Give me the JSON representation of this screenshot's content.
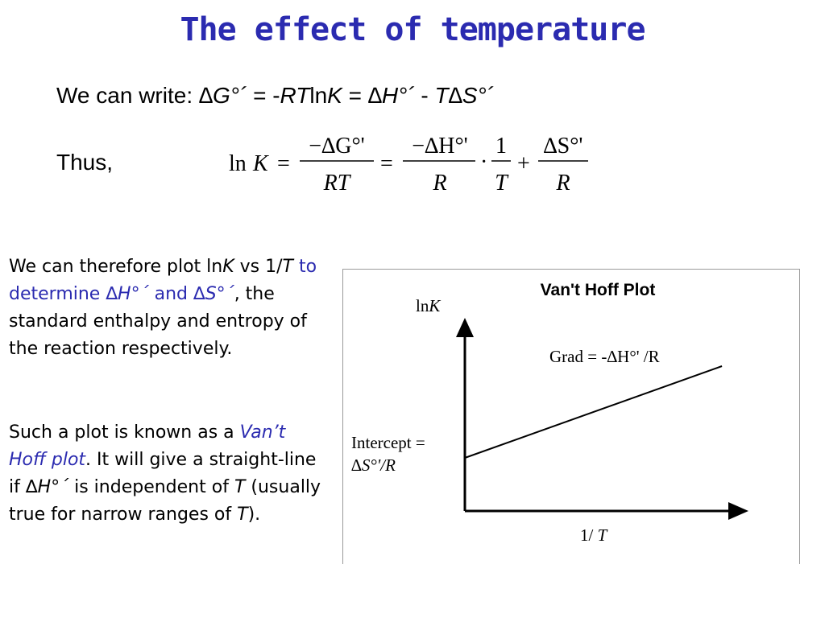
{
  "title": "The effect of temperature",
  "equation_line": {
    "prefix": "We can write:  ",
    "delta_g": "∆G°´",
    "equals": "  =  -",
    "rt": "RT",
    "ln": "ln",
    "k": "K",
    "eq2": " = ",
    "delta_h": "∆H°´",
    "minus": " - ",
    "t_delta_s": "T∆S°´"
  },
  "thus_label": "Thus,",
  "formula": {
    "ln": "ln",
    "k": "K",
    "eq": "=",
    "num1": "−∆G°'",
    "den1": "RT",
    "num2": "−∆H°'",
    "den2": "R",
    "dot": "·",
    "num3": "1",
    "den3": "T",
    "plus": "+",
    "num4": "∆S°'",
    "den4": "R"
  },
  "paragraph1": {
    "t1": "We can therefore plot ln",
    "k": "K",
    "t2": " vs 1/",
    "t": "T",
    "blue1": " to determine ",
    "dh": "∆H°´",
    "blue2": " and ",
    "ds": "∆S°´",
    "t3": ", the standard enthalpy and entropy of the reaction respectively."
  },
  "paragraph2": {
    "t1": "Such a plot is known as a ",
    "vant_hoff": "Van’t Hoff plot",
    "t2": ".  It will give a straight-line if ",
    "dh": "∆H°´",
    "t3": " is independent of ",
    "t": "T",
    "t4": " (usually true for narrow ranges of ",
    "t_end": "T",
    "t5": ")."
  },
  "chart": {
    "title": "Van't Hoff Plot",
    "y_axis_label": "lnK",
    "x_axis_label": "1/ T",
    "gradient_label": "Grad = -∆H°' /R",
    "intercept_label_line1": "Intercept =",
    "intercept_label_line2": "∆S°'/R"
  },
  "chart_data": {
    "type": "line",
    "title": "Van't Hoff Plot",
    "xlabel": "1/ T",
    "ylabel": "lnK",
    "annotations": [
      "Grad = -∆H°' /R",
      "Intercept = ∆S°'/R"
    ],
    "series": [
      {
        "x": [
          0,
          1
        ],
        "y": [
          0.33,
          0.9
        ]
      }
    ],
    "xlim": [
      0,
      1.05
    ],
    "ylim": [
      0,
      1.2
    ],
    "grid": false
  }
}
